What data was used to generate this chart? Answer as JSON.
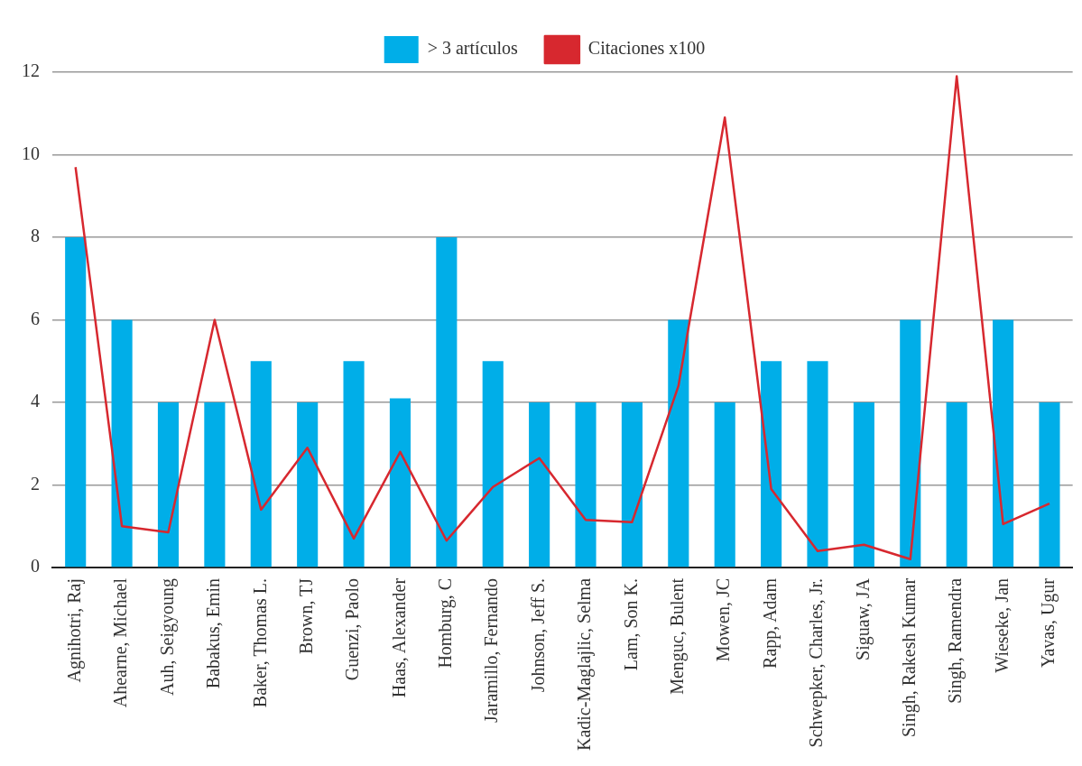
{
  "chart_data": {
    "type": "bar",
    "categories": [
      "Agnihotri, Raj",
      "Ahearne, Michael",
      "Auh, Seigyoung",
      "Babakus, Emin",
      "Baker, Thomas L.",
      "Brown, TJ",
      "Guenzi, Paolo",
      "Haas, Alexander",
      "Homburg, C",
      "Jaramillo, Fernando",
      "Johnson, Jeff S.",
      "Kadic-Maglajlic, Selma",
      "Lam, Son K.",
      "Menguc, Bulent",
      "Mowen, JC",
      "Rapp, Adam",
      "Schwepker, Charles, Jr.",
      "Siguaw, JA",
      "Singh, Rakesh Kumar",
      "Singh, Ramendra",
      "Wieseke, Jan",
      "Yavas, Ugur"
    ],
    "series": [
      {
        "name": "> 3 artículos",
        "color": "#00aee8",
        "values": [
          8,
          6,
          4,
          4,
          5,
          4,
          5,
          4.1,
          8,
          5,
          4,
          4,
          4,
          6,
          4,
          5,
          5,
          4,
          6,
          4,
          6,
          4
        ]
      },
      {
        "name": "Citaciones x100",
        "type": "line",
        "color": "#d7282f",
        "values": [
          9.7,
          1.0,
          0.85,
          6.0,
          1.4,
          2.9,
          0.7,
          2.8,
          0.65,
          1.95,
          2.65,
          1.15,
          1.1,
          4.4,
          10.9,
          1.9,
          0.4,
          0.55,
          0.2,
          11.9,
          1.05,
          1.55
        ]
      }
    ],
    "ylim": [
      0,
      12
    ],
    "yticks": [
      0,
      2,
      4,
      6,
      8,
      10,
      12
    ],
    "grid": "y",
    "legend": "top",
    "marker": "none",
    "line_style": "solid"
  }
}
